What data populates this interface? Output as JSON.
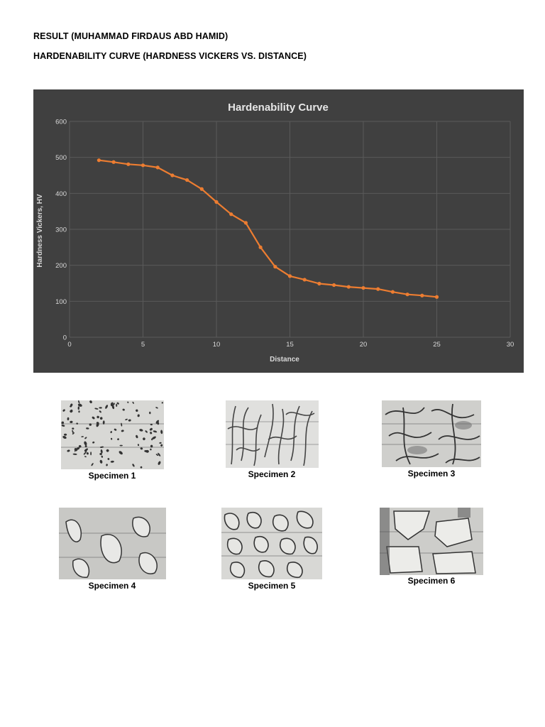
{
  "page": {
    "heading_1": "RESULT (MUHAMMAD FIRDAUS ABD HAMID)",
    "heading_2": "HARDENABILITY CURVE (HARDNESS VICKERS VS. DISTANCE)"
  },
  "colors": {
    "chart_background": "#404040",
    "gridline": "#5a5a5a",
    "series_line": "#ed7d31",
    "axis_text": "#d9d9d9",
    "title_text": "#e6e6e6"
  },
  "chart_data": {
    "type": "line",
    "title": "Hardenability Curve",
    "xlabel": "Distance",
    "ylabel": "Hardness Vickers, HV",
    "xlim": [
      0,
      30
    ],
    "ylim": [
      0,
      600
    ],
    "x_ticks": [
      0,
      5,
      10,
      15,
      20,
      25,
      30
    ],
    "y_ticks": [
      0,
      100,
      200,
      300,
      400,
      500,
      600
    ],
    "grid": true,
    "series": [
      {
        "x": [
          2,
          3,
          4,
          5,
          6,
          7,
          8,
          9,
          10,
          11,
          12,
          13,
          14,
          15,
          16,
          17,
          18,
          19,
          20,
          21,
          22,
          23,
          24,
          25
        ],
        "y": [
          492,
          487,
          481,
          478,
          472,
          450,
          437,
          412,
          376,
          342,
          318,
          250,
          196,
          170,
          160,
          149,
          145,
          140,
          137,
          134,
          126,
          119,
          116,
          112
        ]
      }
    ]
  },
  "specimens": [
    {
      "caption": "Specimen 1"
    },
    {
      "caption": "Specimen 2"
    },
    {
      "caption": "Specimen 3"
    },
    {
      "caption": "Specimen 4"
    },
    {
      "caption": "Specimen 5"
    },
    {
      "caption": "Specimen 6"
    }
  ]
}
